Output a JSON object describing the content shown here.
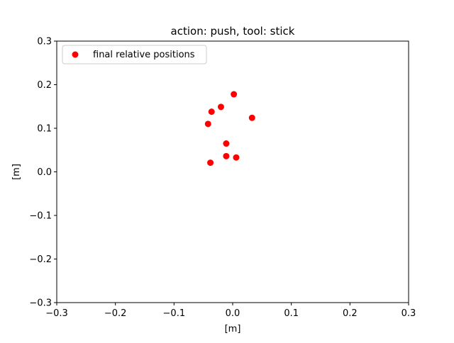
{
  "chart_data": {
    "type": "scatter",
    "title": "action: push, tool: stick",
    "xlabel": "[m]",
    "ylabel": "[m]",
    "xlim": [
      -0.3,
      0.3
    ],
    "ylim": [
      -0.3,
      0.3
    ],
    "xticks": [
      -0.3,
      -0.2,
      -0.1,
      0.0,
      0.1,
      0.2,
      0.3
    ],
    "xtick_labels": [
      "−0.3",
      "−0.2",
      "−0.1",
      "0.0",
      "0.1",
      "0.2",
      "0.3"
    ],
    "yticks": [
      -0.3,
      -0.2,
      -0.1,
      0.0,
      0.1,
      0.2,
      0.3
    ],
    "ytick_labels": [
      "−0.3",
      "−0.2",
      "−0.1",
      "0.0",
      "0.1",
      "0.2",
      "0.3"
    ],
    "grid": false,
    "legend_position": "upper left",
    "series": [
      {
        "name": "final relative positions",
        "color": "#ff0000",
        "marker": "circle",
        "points": [
          {
            "x": 0.002,
            "y": 0.178
          },
          {
            "x": -0.02,
            "y": 0.149
          },
          {
            "x": -0.036,
            "y": 0.138
          },
          {
            "x": 0.033,
            "y": 0.124
          },
          {
            "x": -0.042,
            "y": 0.11
          },
          {
            "x": -0.011,
            "y": 0.065
          },
          {
            "x": -0.011,
            "y": 0.036
          },
          {
            "x": 0.006,
            "y": 0.033
          },
          {
            "x": -0.038,
            "y": 0.021
          }
        ]
      }
    ]
  }
}
